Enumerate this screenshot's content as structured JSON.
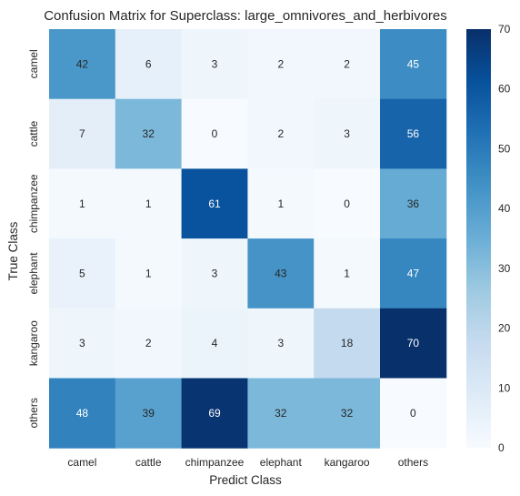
{
  "chart_data": {
    "type": "heatmap",
    "title": "Confusion Matrix for Superclass: large_omnivores_and_herbivores",
    "xlabel": "Predict Class",
    "ylabel": "True Class",
    "x_categories": [
      "camel",
      "cattle",
      "chimpanzee",
      "elephant",
      "kangaroo",
      "others"
    ],
    "y_categories": [
      "camel",
      "cattle",
      "chimpanzee",
      "elephant",
      "kangaroo",
      "others"
    ],
    "values": [
      [
        42,
        6,
        3,
        2,
        2,
        45
      ],
      [
        7,
        32,
        0,
        2,
        3,
        56
      ],
      [
        1,
        1,
        61,
        1,
        0,
        36
      ],
      [
        5,
        1,
        3,
        43,
        1,
        47
      ],
      [
        3,
        2,
        4,
        3,
        18,
        70
      ],
      [
        48,
        39,
        69,
        32,
        32,
        0
      ]
    ],
    "colorbar": {
      "range": [
        0,
        70
      ],
      "ticks": [
        0,
        10,
        20,
        30,
        40,
        50,
        60,
        70
      ]
    },
    "colormap": "Blues",
    "colors": [
      "#f7fbff",
      "#deebf7",
      "#c6dbef",
      "#9ecae1",
      "#6baed6",
      "#4292c6",
      "#2171b5",
      "#08519c",
      "#08306b"
    ]
  }
}
